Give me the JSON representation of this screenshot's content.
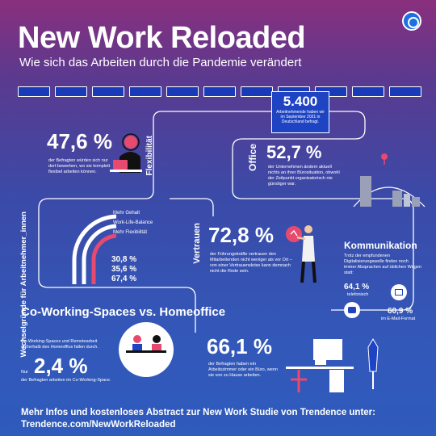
{
  "header": {
    "title": "New Work Reloaded",
    "subtitle": "Wie sich das Arbeiten durch die Pandemie verändert"
  },
  "survey": {
    "count": "5.400",
    "text": "Arbeitnehmende haben wir im September 2021 in Deutschland befragt."
  },
  "flexibility": {
    "pct": "47,6 %",
    "label": "Flexibilität",
    "text": "der Befragten würden sich nur dort bewerben, wo sie komplett flexibel arbeiten können."
  },
  "office": {
    "pct": "52,7 %",
    "label": "Office",
    "text": "der Unternehmen ändern aktuell nichts an ihrer Bürosituation, obwohl der Zeitpunkt organisatorisch nie günstiger war."
  },
  "reasons": {
    "label": "Wechselgründe für Arbeitnehmer_innen",
    "items": [
      {
        "name": "Mehr Gehalt",
        "pct": "30,8 %"
      },
      {
        "name": "Work-Life-Balance",
        "pct": "35,6 %"
      },
      {
        "name": "Mehr Flexibilität",
        "pct": "67,4 %"
      }
    ]
  },
  "trust": {
    "pct": "72,8 %",
    "label": "Vertrauen",
    "text": "der Führungskräfte vertrauen den Mitarbeitenden nicht weniger als vor Ort – von einer Vertrauenskrise kann demnach nicht die Rede sein."
  },
  "communication": {
    "title": "Kommunikation",
    "text": "Trotz der empfundenen Digitalisierungswelle finden noch immer Absprachen auf üblichen Wegen statt:",
    "phone_pct": "64,1 %",
    "phone_label": "telefonisch",
    "email_pct": "60,9 %",
    "email_label": "im E-Mail-Format"
  },
  "coworking": {
    "title": "Co-Working-Spaces vs. Homeoffice",
    "text": "Co-Working-Spaces und Remotearbeit außerhalb des Homeoffice fallen durch.",
    "prefix": "Nur",
    "pct": "2,4 %",
    "text2": "der Befragten arbeiten im Co-Working-Space."
  },
  "room": {
    "pct": "66,1 %",
    "text": "der Befragten haben ein Arbeitszimmer oder ein Büro, wenn sie von zu Hause arbeiten."
  },
  "footer": {
    "line1": "Mehr Infos und kostenloses Abstract zur New Work Studie von Trendence unter:",
    "line2": "Trendence.com/NewWorkReloaded"
  },
  "colors": {
    "accent": "#1f44c3",
    "pink": "#e64a6f"
  }
}
